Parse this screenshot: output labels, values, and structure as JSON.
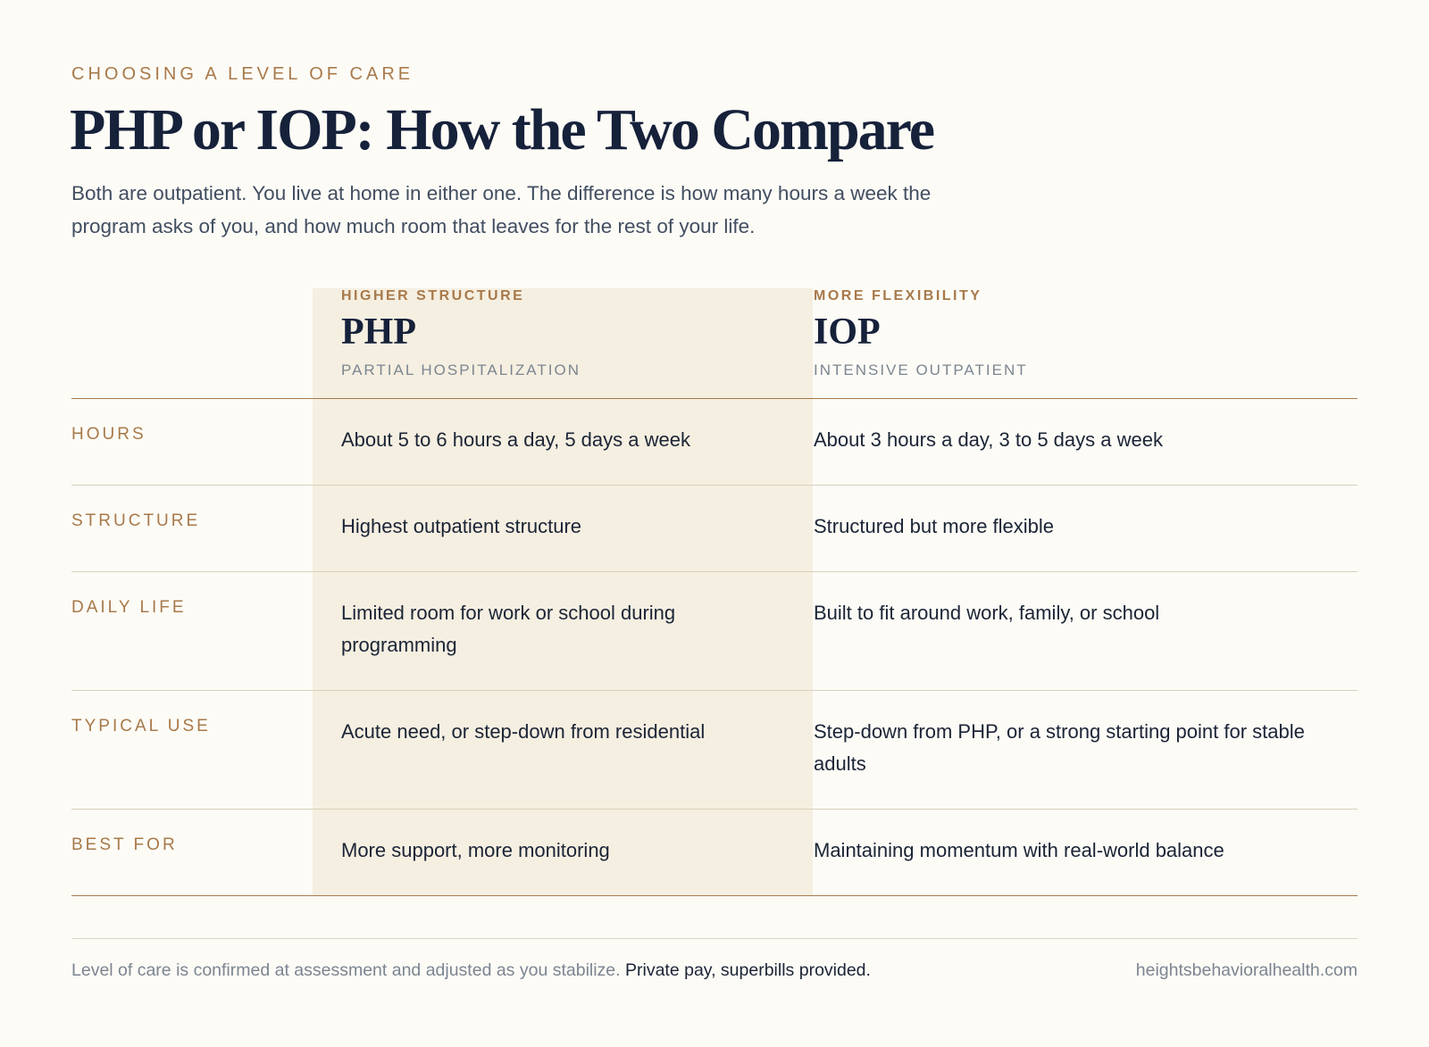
{
  "eyebrow": "CHOOSING A LEVEL OF CARE",
  "title": "PHP or IOP: How the Two Compare",
  "lede": "Both are outpatient. You live at home in either one. The difference is how many hours a week the program asks of you, and how much room that leaves for the rest of your life.",
  "columns": {
    "php": {
      "kicker": "HIGHER STRUCTURE",
      "abbr": "PHP",
      "name": "PARTIAL HOSPITALIZATION"
    },
    "iop": {
      "kicker": "MORE FLEXIBILITY",
      "abbr": "IOP",
      "name": "INTENSIVE OUTPATIENT"
    }
  },
  "rows": [
    {
      "label": "HOURS",
      "php": "About 5 to 6 hours a day, 5 days a week",
      "iop": "About 3 hours a day, 3 to 5 days a week"
    },
    {
      "label": "STRUCTURE",
      "php": "Highest outpatient structure",
      "iop": "Structured but more flexible"
    },
    {
      "label": "DAILY LIFE",
      "php": "Limited room for work or school during programming",
      "iop": "Built to fit around work, family, or school"
    },
    {
      "label": "TYPICAL USE",
      "php": "Acute need, or step-down from residential",
      "iop": "Step-down from PHP, or a strong starting point for stable adults"
    },
    {
      "label": "BEST FOR",
      "php": "More support, more monitoring",
      "iop": "Maintaining momentum with real-world balance"
    }
  ],
  "footer": {
    "note": "Level of care is confirmed at assessment and adjusted as you stabilize.",
    "note_strong": "Private pay, superbills provided.",
    "url": "heightsbehavioralhealth.com"
  },
  "colors": {
    "background": "#fcfbf6",
    "accent": "#a8794a",
    "heading": "#16213a",
    "php_column": "#f5efe1"
  }
}
